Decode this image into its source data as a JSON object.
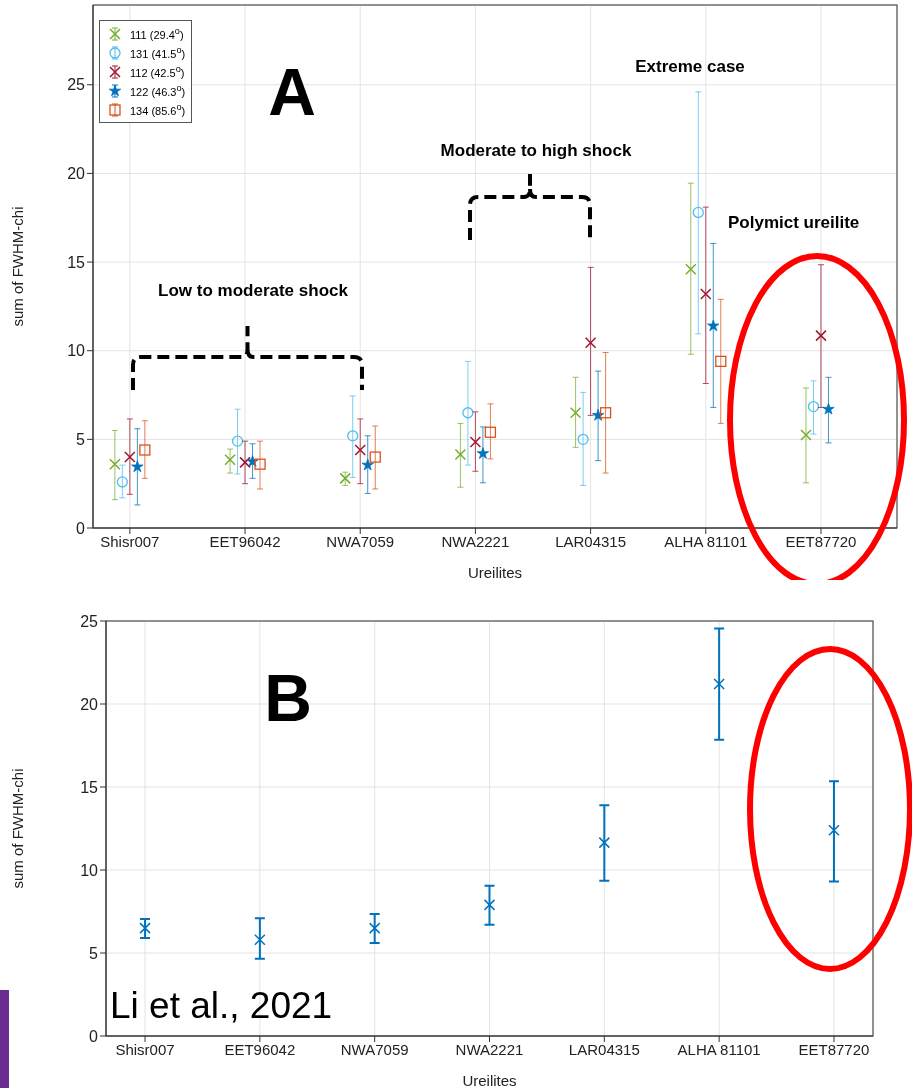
{
  "chart_data": [
    {
      "type": "scatter",
      "xlabel": "Ureilites",
      "ylabel": "sum of FWHM-chi",
      "categories": [
        "Shisr007",
        "EET96042",
        "NWA7059",
        "NWA2221",
        "LAR04315",
        "ALHA 81101",
        "EET87720"
      ],
      "ylim": [
        0,
        29.5
      ],
      "yticks": [
        0,
        5,
        10,
        15,
        20,
        25
      ],
      "grid": true,
      "legend": "top left",
      "annotations": [
        "A",
        "Extreme case",
        "Moderate to high shock",
        "Low to moderate shock",
        "Polymict ureilite"
      ],
      "series": [
        {
          "name": "111 (29.4$^{o}$)",
          "color": "#77ac30",
          "marker": "cross",
          "values": [
            3.6,
            3.85,
            2.8,
            4.15,
            6.5,
            14.6,
            5.25
          ],
          "errors": [
            [
              1.6,
              5.5
            ],
            [
              3.1,
              4.45
            ],
            [
              2.4,
              3.15
            ],
            [
              2.3,
              5.9
            ],
            [
              4.55,
              8.5
            ],
            [
              9.8,
              19.45
            ],
            [
              2.55,
              7.9
            ]
          ]
        },
        {
          "name": "131 (41.5$^{o}$)",
          "color": "#4dbeee",
          "marker": "circle",
          "values": [
            2.6,
            4.9,
            5.2,
            6.5,
            5.0,
            17.8,
            6.85
          ],
          "errors": [
            [
              1.7,
              3.55
            ],
            [
              3.05,
              6.7
            ],
            [
              2.85,
              7.45
            ],
            [
              3.55,
              9.4
            ],
            [
              2.4,
              7.65
            ],
            [
              10.95,
              24.6
            ],
            [
              5.3,
              8.3
            ]
          ]
        },
        {
          "name": "112 (42.5$^{o}$)",
          "color": "#a2142f",
          "marker": "cross",
          "values": [
            4.0,
            3.7,
            4.4,
            4.85,
            10.45,
            13.2,
            10.85
          ],
          "errors": [
            [
              1.9,
              6.15
            ],
            [
              2.5,
              4.9
            ],
            [
              2.5,
              6.15
            ],
            [
              3.2,
              6.55
            ],
            [
              6.35,
              14.7
            ],
            [
              8.15,
              18.1
            ],
            [
              6.8,
              14.85
            ]
          ]
        },
        {
          "name": "122 (46.3$^{o}$)",
          "color": "#0072bd",
          "marker": "star",
          "values": [
            3.45,
            3.75,
            3.55,
            4.2,
            6.35,
            11.4,
            6.7
          ],
          "errors": [
            [
              1.3,
              5.6
            ],
            [
              2.8,
              4.75
            ],
            [
              1.95,
              5.2
            ],
            [
              2.55,
              5.7
            ],
            [
              3.8,
              8.85
            ],
            [
              6.8,
              16.05
            ],
            [
              4.8,
              8.5
            ]
          ]
        },
        {
          "name": "134 (85.6$^{o}$)",
          "color": "#d95319",
          "marker": "square",
          "values": [
            4.4,
            3.6,
            4.0,
            5.4,
            6.5,
            9.4,
            null
          ],
          "errors": [
            [
              2.8,
              6.05
            ],
            [
              2.2,
              4.9
            ],
            [
              2.2,
              5.75
            ],
            [
              3.9,
              7.0
            ],
            [
              3.1,
              9.9
            ],
            [
              5.9,
              12.9
            ],
            null
          ]
        }
      ]
    },
    {
      "type": "scatter",
      "xlabel": "Ureilites",
      "ylabel": "sum of FWHM-chi",
      "categories": [
        "Shisr007",
        "EET96042",
        "NWA7059",
        "NWA2221",
        "LAR04315",
        "ALHA 81101",
        "EET87720"
      ],
      "ylim": [
        0,
        25
      ],
      "yticks": [
        0,
        5,
        10,
        15,
        20,
        25
      ],
      "grid": true,
      "marker": "cross",
      "annotations": [
        "B",
        "Li et al., 2021"
      ],
      "series": [
        {
          "color": "#0072bd",
          "values": [
            6.5,
            5.8,
            6.5,
            7.9,
            11.65,
            21.2,
            12.4
          ],
          "errors": [
            [
              5.9,
              7.05
            ],
            [
              4.65,
              7.1
            ],
            [
              5.6,
              7.35
            ],
            [
              6.7,
              9.05
            ],
            [
              9.35,
              13.9
            ],
            [
              17.85,
              24.55
            ],
            [
              9.3,
              15.35
            ]
          ]
        }
      ]
    }
  ]
}
